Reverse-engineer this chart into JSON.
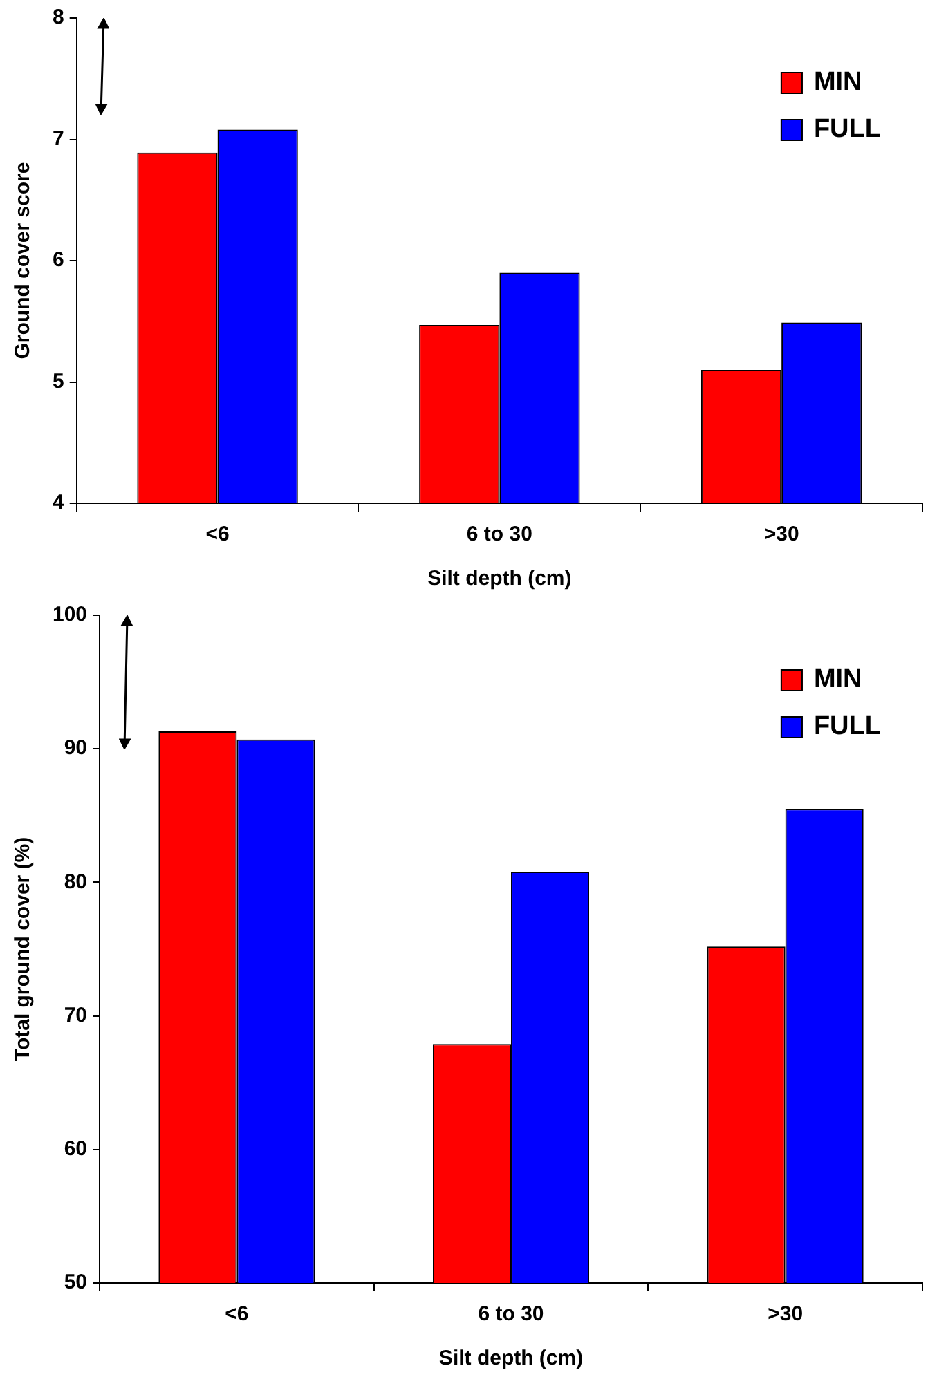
{
  "chart_data": [
    {
      "type": "bar",
      "ylabel": "Ground cover score",
      "xlabel": "Silt depth (cm)",
      "categories": [
        "<6",
        "6 to 30",
        ">30"
      ],
      "series": [
        {
          "name": "MIN",
          "color": "#ff0000",
          "values": [
            6.89,
            5.47,
            5.1
          ]
        },
        {
          "name": "FULL",
          "color": "#0000ff",
          "values": [
            7.08,
            5.9,
            5.49
          ]
        }
      ],
      "ylim": [
        4,
        8
      ],
      "yticks": [
        4,
        5,
        6,
        7,
        8
      ],
      "grid": false,
      "legend": "top right"
    },
    {
      "type": "bar",
      "ylabel": "Total ground cover (%)",
      "xlabel": "Silt depth (cm)",
      "categories": [
        "<6",
        "6 to 30",
        ">30"
      ],
      "series": [
        {
          "name": "MIN",
          "color": "#ff0000",
          "values": [
            91.3,
            67.9,
            75.2
          ]
        },
        {
          "name": "FULL",
          "color": "#0000ff",
          "values": [
            90.7,
            80.8,
            85.5
          ]
        }
      ],
      "ylim": [
        50,
        100
      ],
      "yticks": [
        50,
        60,
        70,
        80,
        90,
        100
      ],
      "grid": false,
      "legend": "top right"
    }
  ]
}
